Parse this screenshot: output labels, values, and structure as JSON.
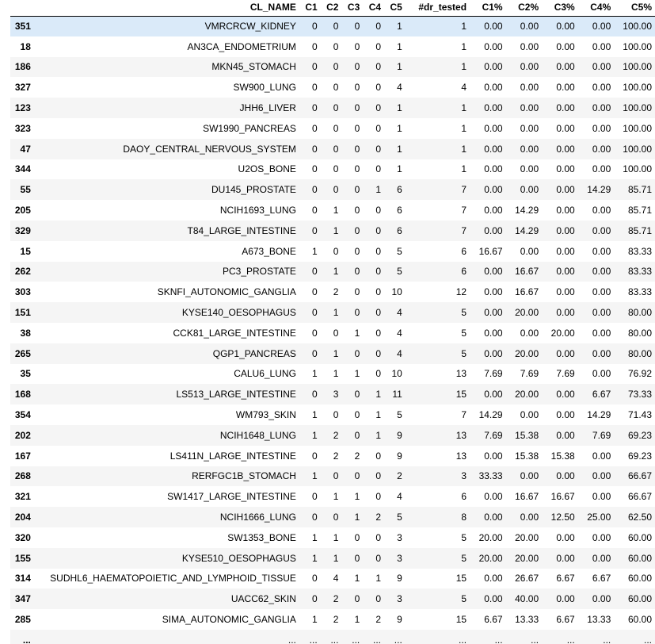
{
  "table": {
    "columns": [
      "",
      "CL_NAME",
      "C1",
      "C2",
      "C3",
      "C4",
      "C5",
      "#dr_tested",
      "C1%",
      "C2%",
      "C3%",
      "C4%",
      "C5%"
    ],
    "rows": [
      [
        "351",
        "VMRCRCW_KIDNEY",
        "0",
        "0",
        "0",
        "0",
        "1",
        "1",
        "0.00",
        "0.00",
        "0.00",
        "0.00",
        "100.00"
      ],
      [
        "18",
        "AN3CA_ENDOMETRIUM",
        "0",
        "0",
        "0",
        "0",
        "1",
        "1",
        "0.00",
        "0.00",
        "0.00",
        "0.00",
        "100.00"
      ],
      [
        "186",
        "MKN45_STOMACH",
        "0",
        "0",
        "0",
        "0",
        "1",
        "1",
        "0.00",
        "0.00",
        "0.00",
        "0.00",
        "100.00"
      ],
      [
        "327",
        "SW900_LUNG",
        "0",
        "0",
        "0",
        "0",
        "4",
        "4",
        "0.00",
        "0.00",
        "0.00",
        "0.00",
        "100.00"
      ],
      [
        "123",
        "JHH6_LIVER",
        "0",
        "0",
        "0",
        "0",
        "1",
        "1",
        "0.00",
        "0.00",
        "0.00",
        "0.00",
        "100.00"
      ],
      [
        "323",
        "SW1990_PANCREAS",
        "0",
        "0",
        "0",
        "0",
        "1",
        "1",
        "0.00",
        "0.00",
        "0.00",
        "0.00",
        "100.00"
      ],
      [
        "47",
        "DAOY_CENTRAL_NERVOUS_SYSTEM",
        "0",
        "0",
        "0",
        "0",
        "1",
        "1",
        "0.00",
        "0.00",
        "0.00",
        "0.00",
        "100.00"
      ],
      [
        "344",
        "U2OS_BONE",
        "0",
        "0",
        "0",
        "0",
        "1",
        "1",
        "0.00",
        "0.00",
        "0.00",
        "0.00",
        "100.00"
      ],
      [
        "55",
        "DU145_PROSTATE",
        "0",
        "0",
        "0",
        "1",
        "6",
        "7",
        "0.00",
        "0.00",
        "0.00",
        "14.29",
        "85.71"
      ],
      [
        "205",
        "NCIH1693_LUNG",
        "0",
        "1",
        "0",
        "0",
        "6",
        "7",
        "0.00",
        "14.29",
        "0.00",
        "0.00",
        "85.71"
      ],
      [
        "329",
        "T84_LARGE_INTESTINE",
        "0",
        "1",
        "0",
        "0",
        "6",
        "7",
        "0.00",
        "14.29",
        "0.00",
        "0.00",
        "85.71"
      ],
      [
        "15",
        "A673_BONE",
        "1",
        "0",
        "0",
        "0",
        "5",
        "6",
        "16.67",
        "0.00",
        "0.00",
        "0.00",
        "83.33"
      ],
      [
        "262",
        "PC3_PROSTATE",
        "0",
        "1",
        "0",
        "0",
        "5",
        "6",
        "0.00",
        "16.67",
        "0.00",
        "0.00",
        "83.33"
      ],
      [
        "303",
        "SKNFI_AUTONOMIC_GANGLIA",
        "0",
        "2",
        "0",
        "0",
        "10",
        "12",
        "0.00",
        "16.67",
        "0.00",
        "0.00",
        "83.33"
      ],
      [
        "151",
        "KYSE140_OESOPHAGUS",
        "0",
        "1",
        "0",
        "0",
        "4",
        "5",
        "0.00",
        "20.00",
        "0.00",
        "0.00",
        "80.00"
      ],
      [
        "38",
        "CCK81_LARGE_INTESTINE",
        "0",
        "0",
        "1",
        "0",
        "4",
        "5",
        "0.00",
        "0.00",
        "20.00",
        "0.00",
        "80.00"
      ],
      [
        "265",
        "QGP1_PANCREAS",
        "0",
        "1",
        "0",
        "0",
        "4",
        "5",
        "0.00",
        "20.00",
        "0.00",
        "0.00",
        "80.00"
      ],
      [
        "35",
        "CALU6_LUNG",
        "1",
        "1",
        "1",
        "0",
        "10",
        "13",
        "7.69",
        "7.69",
        "7.69",
        "0.00",
        "76.92"
      ],
      [
        "168",
        "LS513_LARGE_INTESTINE",
        "0",
        "3",
        "0",
        "1",
        "11",
        "15",
        "0.00",
        "20.00",
        "0.00",
        "6.67",
        "73.33"
      ],
      [
        "354",
        "WM793_SKIN",
        "1",
        "0",
        "0",
        "1",
        "5",
        "7",
        "14.29",
        "0.00",
        "0.00",
        "14.29",
        "71.43"
      ],
      [
        "202",
        "NCIH1648_LUNG",
        "1",
        "2",
        "0",
        "1",
        "9",
        "13",
        "7.69",
        "15.38",
        "0.00",
        "7.69",
        "69.23"
      ],
      [
        "167",
        "LS411N_LARGE_INTESTINE",
        "0",
        "2",
        "2",
        "0",
        "9",
        "13",
        "0.00",
        "15.38",
        "15.38",
        "0.00",
        "69.23"
      ],
      [
        "268",
        "RERFGC1B_STOMACH",
        "1",
        "0",
        "0",
        "0",
        "2",
        "3",
        "33.33",
        "0.00",
        "0.00",
        "0.00",
        "66.67"
      ],
      [
        "321",
        "SW1417_LARGE_INTESTINE",
        "0",
        "1",
        "1",
        "0",
        "4",
        "6",
        "0.00",
        "16.67",
        "16.67",
        "0.00",
        "66.67"
      ],
      [
        "204",
        "NCIH1666_LUNG",
        "0",
        "0",
        "1",
        "2",
        "5",
        "8",
        "0.00",
        "0.00",
        "12.50",
        "25.00",
        "62.50"
      ],
      [
        "320",
        "SW1353_BONE",
        "1",
        "1",
        "0",
        "0",
        "3",
        "5",
        "20.00",
        "20.00",
        "0.00",
        "0.00",
        "60.00"
      ],
      [
        "155",
        "KYSE510_OESOPHAGUS",
        "1",
        "1",
        "0",
        "0",
        "3",
        "5",
        "20.00",
        "20.00",
        "0.00",
        "0.00",
        "60.00"
      ],
      [
        "314",
        "SUDHL6_HAEMATOPOIETIC_AND_LYMPHOID_TISSUE",
        "0",
        "4",
        "1",
        "1",
        "9",
        "15",
        "0.00",
        "26.67",
        "6.67",
        "6.67",
        "60.00"
      ],
      [
        "347",
        "UACC62_SKIN",
        "0",
        "2",
        "0",
        "0",
        "3",
        "5",
        "0.00",
        "40.00",
        "0.00",
        "0.00",
        "60.00"
      ],
      [
        "285",
        "SIMA_AUTONOMIC_GANGLIA",
        "1",
        "2",
        "1",
        "2",
        "9",
        "15",
        "6.67",
        "13.33",
        "6.67",
        "13.33",
        "60.00"
      ],
      [
        "...",
        "...",
        "...",
        "...",
        "...",
        "...",
        "...",
        "...",
        "...",
        "...",
        "...",
        "...",
        "..."
      ]
    ]
  }
}
